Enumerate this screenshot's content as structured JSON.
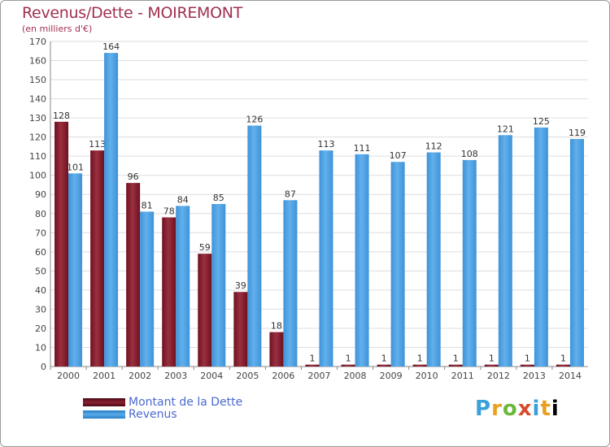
{
  "colors": {
    "debt": "#6e1020",
    "debt_light": "#9a3040",
    "revenue": "#3d93d8",
    "revenue_light": "#62b0ec",
    "grid": "#dddddd",
    "axis_text": "#444444",
    "title": "#a03050",
    "legend_text": "#4a6ad0"
  },
  "chart_data": {
    "type": "bar",
    "title": "Revenus/Dette - MOIREMONT",
    "subtitle": "(en milliers d'€)",
    "xlabel": "",
    "ylabel": "",
    "ylim": [
      0,
      170
    ],
    "ytick_step": 10,
    "grid": true,
    "legend_position": "bottom-left",
    "categories": [
      "2000",
      "2001",
      "2002",
      "2003",
      "2004",
      "2005",
      "2006",
      "2007",
      "2008",
      "2009",
      "2010",
      "2011",
      "2012",
      "2013",
      "2014"
    ],
    "series": [
      {
        "name": "Montant de la Dette",
        "key": "debt",
        "values": [
          128,
          113,
          96,
          78,
          59,
          39,
          18,
          1,
          1,
          1,
          1,
          1,
          1,
          1,
          1
        ]
      },
      {
        "name": "Revenus",
        "key": "revenue",
        "values": [
          101,
          164,
          81,
          84,
          85,
          126,
          87,
          113,
          111,
          107,
          112,
          108,
          121,
          125,
          119
        ]
      }
    ]
  },
  "legend": {
    "debt_label": "Montant de la Dette",
    "revenue_label": "Revenus"
  },
  "brand": {
    "letters": [
      "P",
      "r",
      "o",
      "x",
      "i",
      "t",
      "i"
    ]
  }
}
